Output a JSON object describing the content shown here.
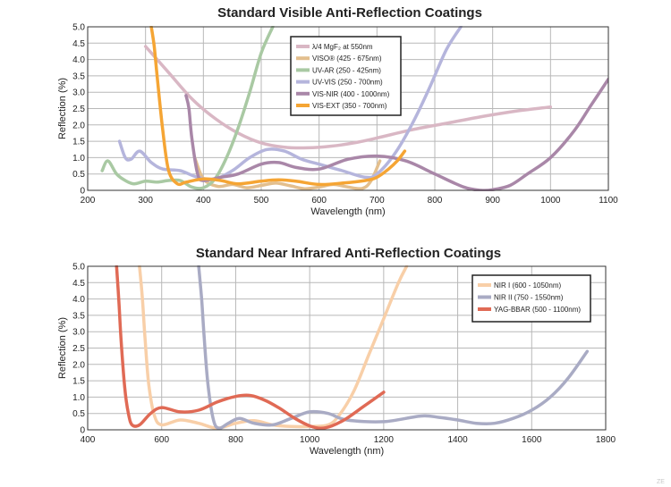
{
  "watermark": "ZE",
  "chart_data": [
    {
      "type": "line",
      "title": "Standard Visible Anti-Reflection Coatings",
      "xlabel": "Wavelength (nm)",
      "ylabel": "Reflection (%)",
      "xlim": [
        200,
        1100
      ],
      "ylim": [
        0,
        5.0
      ],
      "xticks": [
        200,
        300,
        400,
        500,
        600,
        700,
        800,
        900,
        1000,
        1100
      ],
      "yticks": [
        0,
        0.5,
        1.0,
        1.5,
        2.0,
        2.5,
        3.0,
        3.5,
        4.0,
        4.5,
        5.0
      ],
      "ytick_labels": [
        "0",
        "0.5",
        "1.0",
        "1.5",
        "2.0",
        "2.5",
        "3.0",
        "3.5",
        "4.0",
        "4.5",
        "5.0"
      ],
      "grid": true,
      "legend_position": "top-right",
      "series": [
        {
          "name": "λ/4 MgF₂ at 550nm",
          "color": "#d9b7c4",
          "x": [
            300,
            340,
            380,
            420,
            460,
            500,
            540,
            580,
            620,
            660,
            700,
            760,
            820,
            880,
            940,
            1000
          ],
          "y": [
            4.4,
            3.6,
            2.8,
            2.2,
            1.75,
            1.45,
            1.32,
            1.3,
            1.35,
            1.45,
            1.6,
            1.85,
            2.05,
            2.25,
            2.42,
            2.55
          ]
        },
        {
          "name": "VISO® (425 - 675nm)",
          "color": "#e3bf8e",
          "x": [
            385,
            400,
            425,
            450,
            475,
            500,
            525,
            550,
            575,
            600,
            625,
            650,
            675,
            690,
            705
          ],
          "y": [
            1.0,
            0.35,
            0.12,
            0.18,
            0.08,
            0.15,
            0.22,
            0.14,
            0.05,
            0.1,
            0.18,
            0.1,
            0.06,
            0.3,
            0.9
          ]
        },
        {
          "name": "UV-AR (250 - 425nm)",
          "color": "#a9c9a3",
          "x": [
            225,
            235,
            250,
            265,
            280,
            300,
            320,
            340,
            360,
            380,
            400,
            420,
            440,
            460,
            480,
            500,
            520
          ],
          "y": [
            0.6,
            0.9,
            0.5,
            0.3,
            0.2,
            0.28,
            0.25,
            0.3,
            0.3,
            0.1,
            0.08,
            0.35,
            1.0,
            1.9,
            3.0,
            4.2,
            5.0
          ]
        },
        {
          "name": "UV-VIS (250 - 700nm)",
          "color": "#b5b5dc",
          "x": [
            255,
            265,
            275,
            290,
            310,
            330,
            360,
            390,
            420,
            450,
            480,
            510,
            540,
            570,
            600,
            640,
            680,
            700,
            730,
            760,
            790,
            820,
            845
          ],
          "y": [
            1.5,
            1.0,
            0.95,
            1.2,
            0.85,
            0.65,
            0.6,
            0.4,
            0.35,
            0.6,
            1.0,
            1.25,
            1.2,
            0.95,
            0.8,
            0.6,
            0.4,
            0.5,
            1.1,
            2.0,
            3.1,
            4.3,
            5.0
          ]
        },
        {
          "name": "VIS-NIR (400 - 1000nm)",
          "color": "#a987a8",
          "x": [
            370,
            375,
            380,
            390,
            400,
            430,
            460,
            500,
            530,
            560,
            600,
            650,
            700,
            750,
            800,
            850,
            880,
            900,
            930,
            960,
            1000,
            1040,
            1070,
            1100
          ],
          "y": [
            2.9,
            2.5,
            1.6,
            0.5,
            0.3,
            0.4,
            0.5,
            0.8,
            0.85,
            0.7,
            0.65,
            0.95,
            1.05,
            0.9,
            0.5,
            0.1,
            0.0,
            0.02,
            0.15,
            0.5,
            1.0,
            1.8,
            2.6,
            3.4
          ]
        },
        {
          "name": "VIS-EXT (350 - 700nm)",
          "color": "#f5a534",
          "x": [
            310,
            315,
            320,
            330,
            340,
            355,
            370,
            400,
            430,
            460,
            500,
            530,
            560,
            600,
            640,
            680,
            700,
            720,
            735,
            748
          ],
          "y": [
            5.0,
            4.4,
            3.5,
            1.8,
            0.6,
            0.2,
            0.25,
            0.35,
            0.3,
            0.2,
            0.28,
            0.32,
            0.28,
            0.18,
            0.22,
            0.3,
            0.4,
            0.65,
            0.9,
            1.2
          ]
        }
      ]
    },
    {
      "type": "line",
      "title": "Standard Near Infrared Anti-Reflection Coatings",
      "xlabel": "Wavelength (nm)",
      "ylabel": "Reflection (%)",
      "xlim": [
        400,
        1800
      ],
      "ylim": [
        0,
        5.0
      ],
      "xticks": [
        400,
        600,
        800,
        1000,
        1200,
        1400,
        1600,
        1800
      ],
      "yticks": [
        0,
        0.5,
        1.0,
        1.5,
        2.0,
        2.5,
        3.0,
        3.5,
        4.0,
        4.5,
        5.0
      ],
      "ytick_labels": [
        "0",
        "0.5",
        "1.0",
        "1.5",
        "2.0",
        "2.5",
        "3.0",
        "3.5",
        "4.0",
        "4.5",
        "5.0"
      ],
      "grid": true,
      "legend_position": "top-right",
      "series": [
        {
          "name": "NIR I (600 - 1050nm)",
          "color": "#f8cfa8",
          "x": [
            540,
            548,
            555,
            565,
            580,
            600,
            650,
            700,
            750,
            800,
            850,
            900,
            950,
            1000,
            1050,
            1080,
            1120,
            1160,
            1200,
            1240,
            1262
          ],
          "y": [
            5.0,
            4.0,
            2.8,
            1.4,
            0.45,
            0.15,
            0.3,
            0.2,
            0.05,
            0.2,
            0.28,
            0.15,
            0.1,
            0.1,
            0.15,
            0.45,
            1.2,
            2.3,
            3.4,
            4.5,
            5.0
          ]
        },
        {
          "name": "NIR II (750 - 1550nm)",
          "color": "#a9abc4",
          "x": [
            700,
            708,
            715,
            725,
            740,
            755,
            780,
            810,
            850,
            900,
            950,
            1000,
            1050,
            1100,
            1200,
            1300,
            1350,
            1400,
            1450,
            1500,
            1550,
            1600,
            1650,
            1700,
            1750
          ],
          "y": [
            5.0,
            4.0,
            2.8,
            1.4,
            0.3,
            0.05,
            0.2,
            0.35,
            0.2,
            0.15,
            0.35,
            0.55,
            0.5,
            0.3,
            0.25,
            0.42,
            0.38,
            0.3,
            0.2,
            0.2,
            0.35,
            0.6,
            1.0,
            1.6,
            2.4
          ]
        },
        {
          "name": "YAG-BBAR (500 - 1100nm)",
          "color": "#e06a55",
          "x": [
            478,
            484,
            490,
            500,
            510,
            520,
            540,
            570,
            600,
            650,
            700,
            750,
            800,
            840,
            880,
            920,
            960,
            1000,
            1030,
            1060,
            1100,
            1150,
            1200
          ],
          "y": [
            5.0,
            4.0,
            2.8,
            1.3,
            0.5,
            0.15,
            0.15,
            0.5,
            0.68,
            0.55,
            0.6,
            0.85,
            1.02,
            1.05,
            0.9,
            0.65,
            0.35,
            0.12,
            0.05,
            0.12,
            0.35,
            0.75,
            1.15
          ]
        }
      ]
    }
  ]
}
